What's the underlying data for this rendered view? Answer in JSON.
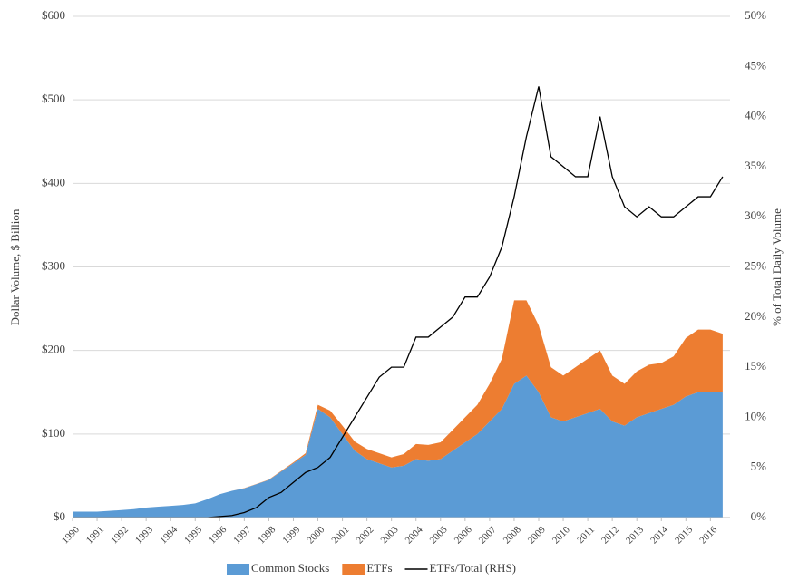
{
  "chart_data": {
    "type": "stacked_area_line",
    "ylabel": "Dollar Volume, $ Billion",
    "y2label": "% of Total Daily Volume",
    "x": [
      1990,
      1990.5,
      1991,
      1991.5,
      1992,
      1992.5,
      1993,
      1993.5,
      1994,
      1994.5,
      1995,
      1995.5,
      1996,
      1996.5,
      1997,
      1997.5,
      1998,
      1998.5,
      1999,
      1999.5,
      2000,
      2000.5,
      2001,
      2001.5,
      2002,
      2002.5,
      2003,
      2003.5,
      2004,
      2004.5,
      2005,
      2005.5,
      2006,
      2006.5,
      2007,
      2007.5,
      2008,
      2008.5,
      2009,
      2009.5,
      2010,
      2010.5,
      2011,
      2011.5,
      2012,
      2012.5,
      2013,
      2013.5,
      2014,
      2014.5,
      2015,
      2015.5,
      2016,
      2016.5
    ],
    "series": [
      {
        "name": "Common Stocks",
        "color": "#5b9bd5",
        "kind": "area",
        "values": [
          7,
          7,
          7,
          8,
          9,
          10,
          12,
          13,
          14,
          15,
          17,
          22,
          28,
          32,
          35,
          40,
          45,
          55,
          65,
          75,
          130,
          120,
          100,
          80,
          70,
          65,
          60,
          62,
          70,
          68,
          70,
          80,
          90,
          100,
          115,
          130,
          160,
          170,
          150,
          120,
          115,
          120,
          125,
          130,
          115,
          110,
          120,
          125,
          130,
          135,
          145,
          150,
          150,
          150
        ]
      },
      {
        "name": "ETFs",
        "color": "#ed7d31",
        "kind": "area",
        "values": [
          0,
          0,
          0,
          0,
          0,
          0,
          0,
          0,
          0,
          0,
          0,
          0,
          0,
          0,
          0.2,
          0.3,
          0.5,
          0.8,
          1,
          2,
          5,
          8,
          10,
          11,
          12,
          12,
          12,
          14,
          18,
          19,
          20,
          25,
          30,
          35,
          45,
          60,
          100,
          90,
          80,
          60,
          55,
          60,
          65,
          70,
          55,
          50,
          55,
          58,
          55,
          58,
          70,
          75,
          75,
          70
        ]
      },
      {
        "name": "ETFs/Total (RHS)",
        "color": "#000000",
        "kind": "line",
        "axis": "y2",
        "values": [
          0,
          0,
          0,
          0,
          0,
          0,
          0,
          0,
          0,
          0,
          0,
          0,
          0.1,
          0.2,
          0.5,
          1,
          2,
          2.5,
          3.5,
          4.5,
          5,
          6,
          8,
          10,
          12,
          14,
          15,
          15,
          18,
          18,
          19,
          20,
          22,
          22,
          24,
          27,
          32,
          38,
          43,
          36,
          35,
          34,
          34,
          40,
          34,
          31,
          30,
          31,
          30,
          30,
          31,
          32,
          32,
          34
        ]
      }
    ],
    "xlim": [
      1990,
      2016.8
    ],
    "xticks": [
      1990,
      1991,
      1992,
      1993,
      1994,
      1995,
      1996,
      1997,
      1998,
      1999,
      2000,
      2001,
      2002,
      2003,
      2004,
      2005,
      2006,
      2007,
      2008,
      2009,
      2010,
      2011,
      2012,
      2013,
      2014,
      2015,
      2016
    ],
    "ylim": [
      0,
      600
    ],
    "yticks": [
      {
        "value": 0,
        "label": "$0"
      },
      {
        "value": 100,
        "label": "$100"
      },
      {
        "value": 200,
        "label": "$200"
      },
      {
        "value": 300,
        "label": "$300"
      },
      {
        "value": 400,
        "label": "$400"
      },
      {
        "value": 500,
        "label": "$500"
      },
      {
        "value": 600,
        "label": "$600"
      }
    ],
    "y2lim": [
      0,
      50
    ],
    "y2ticks": [
      {
        "value": 0,
        "label": "0%"
      },
      {
        "value": 5,
        "label": "5%"
      },
      {
        "value": 10,
        "label": "10%"
      },
      {
        "value": 15,
        "label": "15%"
      },
      {
        "value": 20,
        "label": "20%"
      },
      {
        "value": 25,
        "label": "25%"
      },
      {
        "value": 30,
        "label": "30%"
      },
      {
        "value": 35,
        "label": "35%"
      },
      {
        "value": 40,
        "label": "40%"
      },
      {
        "value": 45,
        "label": "45%"
      },
      {
        "value": 50,
        "label": "50%"
      }
    ],
    "grid": true,
    "legend": "bottom"
  }
}
